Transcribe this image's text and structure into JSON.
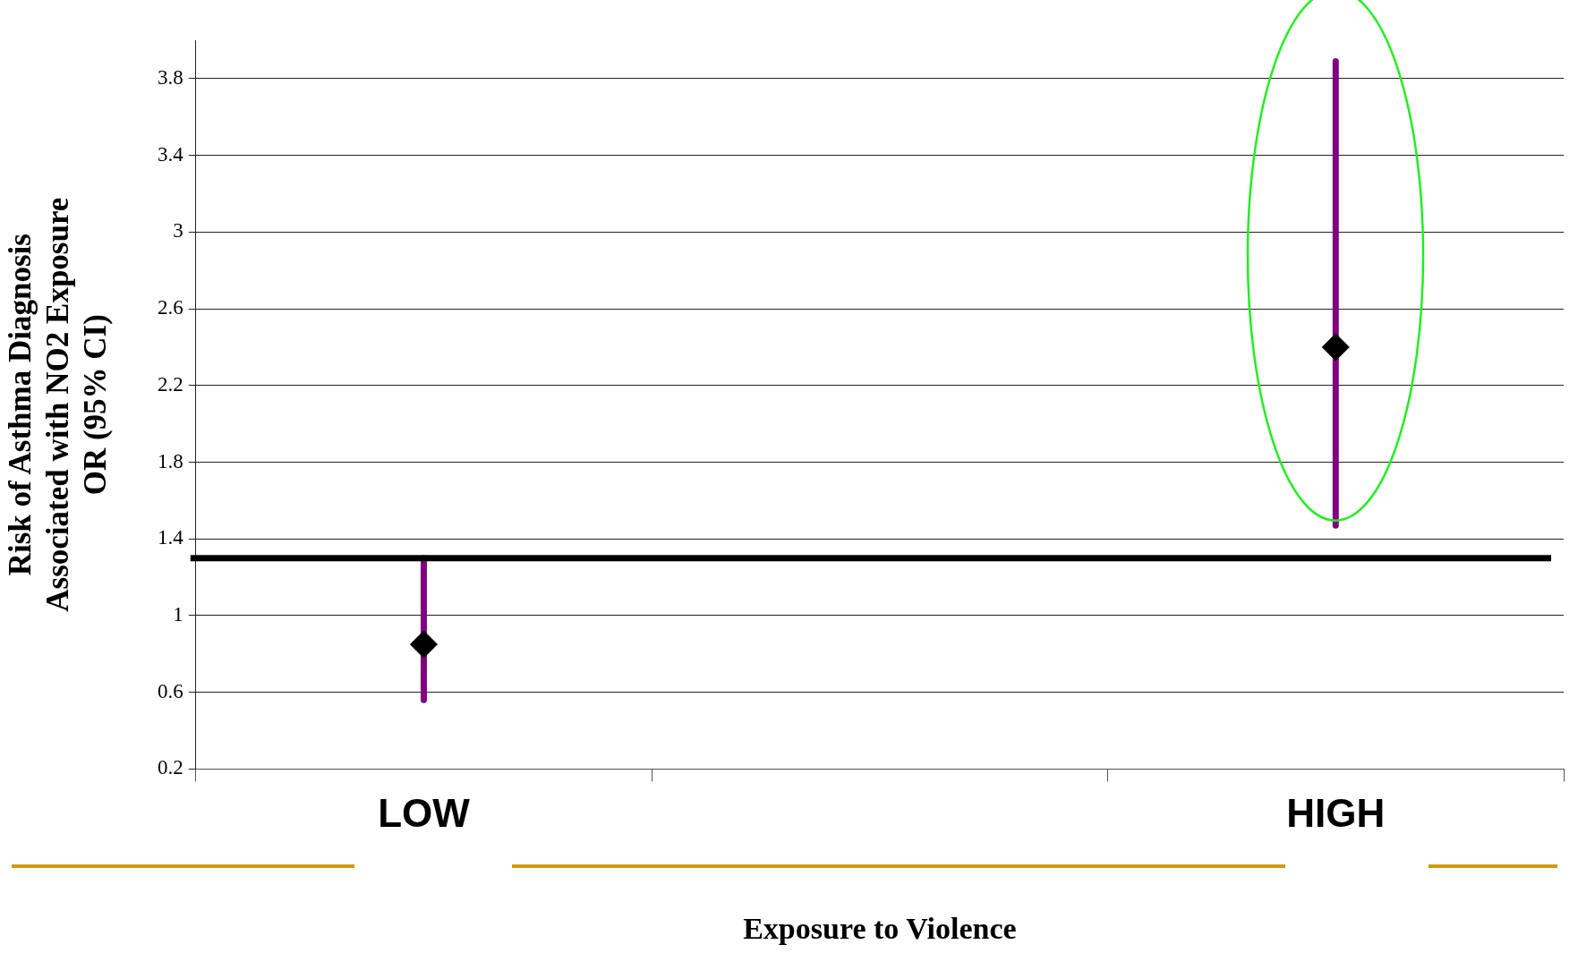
{
  "chart_data": {
    "type": "scatter",
    "xlabel": "Exposure to Violence",
    "ylabel": "Risk of Asthma Diagnosis\nAssociated with NO2 Exposure\nOR (95% CI)",
    "categories": [
      "LOW",
      null,
      "HIGH"
    ],
    "series": [
      {
        "color": "#000000",
        "values": [
          0.85,
          null,
          2.4
        ],
        "errors": [
          [
            0.56,
            1.3
          ],
          null,
          [
            1.47,
            3.89
          ]
        ]
      }
    ],
    "marker": "diamond",
    "ylim": [
      0.2,
      4.0
    ],
    "yticks": [
      0.2,
      0.6,
      1,
      1.4,
      1.8,
      2.2,
      2.6,
      3,
      3.4,
      3.8
    ],
    "grid": "y",
    "ref_lines": [
      {
        "axis": "y",
        "value": 1.3,
        "color": "#000000"
      }
    ]
  }
}
